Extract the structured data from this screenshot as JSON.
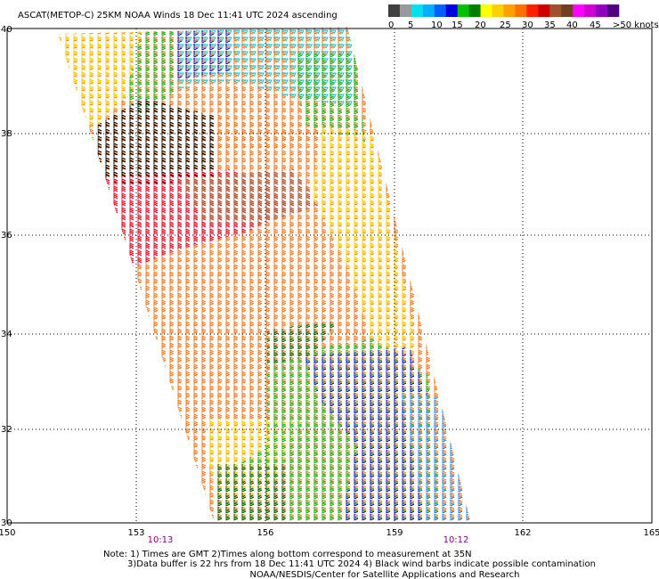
{
  "title": "ASCAT(METOP-C) 25KM NOAA Winds 18 Dec 11:41 UTC 2024 ascending",
  "colorbar": {
    "colors": [
      "#404040",
      "#9a9a9a",
      "#00e0f0",
      "#00b0ff",
      "#0060ff",
      "#0000e0",
      "#00c000",
      "#008000",
      "#ffff00",
      "#ffd000",
      "#ffa000",
      "#ff7000",
      "#ff2000",
      "#d00000",
      "#a05030",
      "#704020",
      "#ff00ff",
      "#d000d0",
      "#9000c0",
      "#500080"
    ],
    "labels": [
      "0",
      "5",
      "10",
      "15",
      "20",
      "25",
      "30",
      "35",
      "40",
      "45",
      ">50 knots"
    ]
  },
  "lat_ticks": [
    "40",
    "38",
    "36",
    "34",
    "32",
    "30"
  ],
  "lon_ticks": [
    "150",
    "153",
    "156",
    "159",
    "162",
    "165"
  ],
  "time_labels": [
    "10:13",
    "10:12"
  ],
  "notes": [
    "Note: 1) Times are GMT 2)Times along bottom correspond to measurement at 35N",
    "3)Data buffer is 22 hrs from 18 Dec 11:41 UTC 2024 4) Black wind barbs indicate possible contamination",
    "NOAA/NESDIS/Center for Satellite Applications and Research"
  ]
}
